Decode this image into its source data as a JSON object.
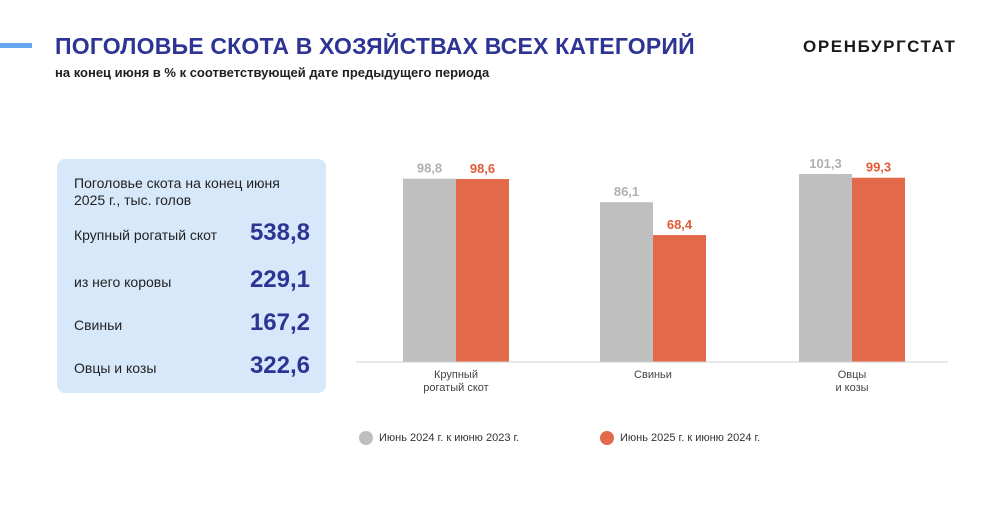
{
  "header": {
    "title": "ПОГОЛОВЬЕ СКОТА В ХОЗЯЙСТВАХ ВСЕХ КАТЕГОРИЙ",
    "subtitle": "на конец июня в % к соответствующей дате предыдущего периода",
    "brand": "ОРЕНБУРГСТАТ"
  },
  "panel": {
    "heading": "Поголовье скота на конец июня 2025 г., тыс. голов",
    "rows": [
      {
        "label": "Крупный рогатый скот",
        "value": "538,8"
      },
      {
        "label": "из него коровы",
        "value": "229,1"
      },
      {
        "label": "Свиньи",
        "value": "167,2"
      },
      {
        "label": "Овцы и козы",
        "value": "322,6"
      }
    ]
  },
  "chart_data": {
    "type": "bar",
    "categories": [
      "Крупный рогатый скот",
      "Свиньи",
      "Овцы и козы"
    ],
    "series": [
      {
        "name": "Июнь 2024 г. к июню 2023 г.",
        "values": [
          98.8,
          86.1,
          101.3
        ],
        "labels": [
          "98,8",
          "86,1",
          "101,3"
        ],
        "color": "#bfbfbf",
        "label_color": "#b0b0b0"
      },
      {
        "name": "Июнь 2025 г. к июню 2024 г.",
        "values": [
          98.6,
          68.4,
          99.3
        ],
        "labels": [
          "98,6",
          "68,4",
          "99,3"
        ],
        "color": "#e2694a",
        "label_color": "#e05a35"
      }
    ],
    "ylim": [
      0,
      101.3
    ],
    "legend_position": "bottom",
    "grid": false
  }
}
